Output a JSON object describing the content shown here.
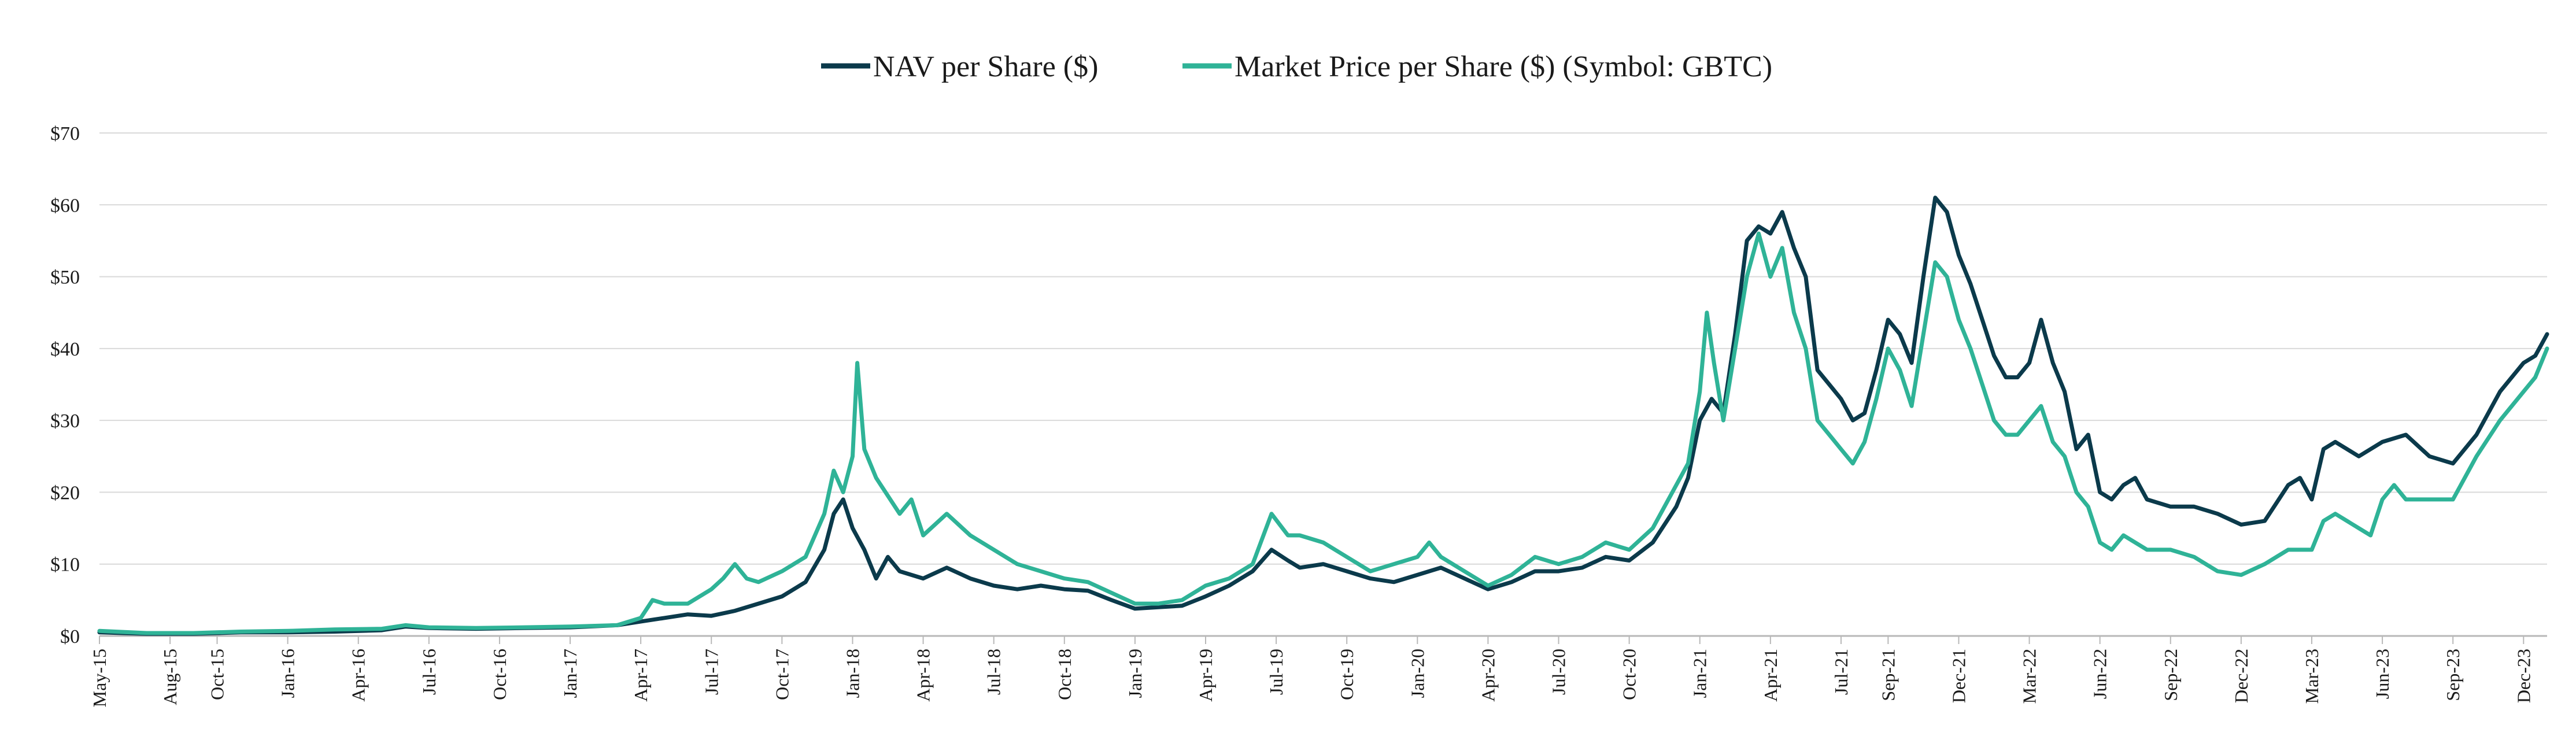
{
  "chart_data": {
    "type": "line",
    "title": "",
    "xlabel": "",
    "ylabel": "",
    "ylim": [
      0,
      70
    ],
    "y_ticks": [
      "$0",
      "$10",
      "$20",
      "$30",
      "$40",
      "$50",
      "$60",
      "$70"
    ],
    "y_tick_values": [
      0,
      10,
      20,
      30,
      40,
      50,
      60,
      70
    ],
    "x_tick_labels": [
      "May-15",
      "Aug-15",
      "Oct-15",
      "Jan-16",
      "Apr-16",
      "Jul-16",
      "Oct-16",
      "Jan-17",
      "Apr-17",
      "Jul-17",
      "Oct-17",
      "Jan-18",
      "Apr-18",
      "Jul-18",
      "Oct-18",
      "Jan-19",
      "Apr-19",
      "Jul-19",
      "Oct-19",
      "Jan-20",
      "Apr-20",
      "Jul-20",
      "Oct-20",
      "Jan-21",
      "Apr-21",
      "Jul-21",
      "Sep-21",
      "Dec-21",
      "Mar-22",
      "Jun-22",
      "Sep-22",
      "Dec-22",
      "Mar-23",
      "Jun-23",
      "Sep-23",
      "Dec-23"
    ],
    "x_tick_months": [
      0,
      3,
      5,
      8,
      11,
      14,
      17,
      20,
      23,
      26,
      29,
      32,
      35,
      38,
      41,
      44,
      47,
      50,
      53,
      56,
      59,
      62,
      65,
      68,
      71,
      74,
      76,
      79,
      82,
      85,
      88,
      91,
      94,
      97,
      100,
      103
    ],
    "x_range_months": [
      0,
      104
    ],
    "grid": "horizontal",
    "legend_position": "top-center",
    "series": [
      {
        "name": "NAV per Share ($)",
        "color": "#0b3a4b",
        "points": [
          [
            0,
            0.5
          ],
          [
            2,
            0.3
          ],
          [
            4,
            0.3
          ],
          [
            6,
            0.5
          ],
          [
            8,
            0.5
          ],
          [
            10,
            0.6
          ],
          [
            12,
            0.8
          ],
          [
            13,
            1.3
          ],
          [
            14,
            1.1
          ],
          [
            16,
            1.0
          ],
          [
            18,
            1.1
          ],
          [
            20,
            1.2
          ],
          [
            22,
            1.5
          ],
          [
            23,
            2.0
          ],
          [
            24,
            2.5
          ],
          [
            25,
            3.0
          ],
          [
            26,
            2.8
          ],
          [
            27,
            3.5
          ],
          [
            28,
            4.5
          ],
          [
            29,
            5.5
          ],
          [
            30,
            7.5
          ],
          [
            30.8,
            12
          ],
          [
            31.2,
            17
          ],
          [
            31.6,
            19
          ],
          [
            32,
            15
          ],
          [
            32.5,
            12
          ],
          [
            33,
            8
          ],
          [
            33.5,
            11
          ],
          [
            34,
            9
          ],
          [
            35,
            8
          ],
          [
            36,
            9.5
          ],
          [
            37,
            8
          ],
          [
            38,
            7
          ],
          [
            39,
            6.5
          ],
          [
            40,
            7
          ],
          [
            41,
            6.5
          ],
          [
            42,
            6.3
          ],
          [
            43,
            5
          ],
          [
            44,
            3.8
          ],
          [
            45,
            4
          ],
          [
            46,
            4.2
          ],
          [
            47,
            5.5
          ],
          [
            48,
            7
          ],
          [
            49,
            9
          ],
          [
            49.8,
            12
          ],
          [
            50.5,
            10.5
          ],
          [
            51,
            9.5
          ],
          [
            52,
            10
          ],
          [
            53,
            9
          ],
          [
            54,
            8
          ],
          [
            55,
            7.5
          ],
          [
            56,
            8.5
          ],
          [
            57,
            9.5
          ],
          [
            58,
            8
          ],
          [
            59,
            6.5
          ],
          [
            60,
            7.5
          ],
          [
            61,
            9
          ],
          [
            62,
            9
          ],
          [
            63,
            9.5
          ],
          [
            64,
            11
          ],
          [
            65,
            10.5
          ],
          [
            66,
            13
          ],
          [
            67,
            18
          ],
          [
            67.5,
            22
          ],
          [
            68,
            30
          ],
          [
            68.5,
            33
          ],
          [
            69,
            31
          ],
          [
            69.5,
            42
          ],
          [
            70,
            55
          ],
          [
            70.5,
            57
          ],
          [
            71,
            56
          ],
          [
            71.5,
            59
          ],
          [
            72,
            54
          ],
          [
            72.5,
            50
          ],
          [
            73,
            37
          ],
          [
            73.5,
            35
          ],
          [
            74,
            33
          ],
          [
            74.5,
            30
          ],
          [
            75,
            31
          ],
          [
            75.5,
            37
          ],
          [
            76,
            44
          ],
          [
            76.5,
            42
          ],
          [
            77,
            38
          ],
          [
            77.5,
            50
          ],
          [
            78,
            61
          ],
          [
            78.5,
            59
          ],
          [
            79,
            53
          ],
          [
            79.5,
            49
          ],
          [
            80,
            44
          ],
          [
            80.5,
            39
          ],
          [
            81,
            36
          ],
          [
            81.5,
            36
          ],
          [
            82,
            38
          ],
          [
            82.5,
            44
          ],
          [
            83,
            38
          ],
          [
            83.5,
            34
          ],
          [
            84,
            26
          ],
          [
            84.5,
            28
          ],
          [
            85,
            20
          ],
          [
            85.5,
            19
          ],
          [
            86,
            21
          ],
          [
            86.5,
            22
          ],
          [
            87,
            19
          ],
          [
            88,
            18
          ],
          [
            89,
            18
          ],
          [
            90,
            17
          ],
          [
            91,
            15.5
          ],
          [
            92,
            16
          ],
          [
            93,
            21
          ],
          [
            93.5,
            22
          ],
          [
            94,
            19
          ],
          [
            94.5,
            26
          ],
          [
            95,
            27
          ],
          [
            96,
            25
          ],
          [
            97,
            27
          ],
          [
            98,
            28
          ],
          [
            99,
            25
          ],
          [
            100,
            24
          ],
          [
            101,
            28
          ],
          [
            102,
            34
          ],
          [
            103,
            38
          ],
          [
            103.5,
            39
          ],
          [
            104,
            42
          ]
        ]
      },
      {
        "name": "Market Price per Share ($) (Symbol: GBTC)",
        "color": "#2fb397",
        "points": [
          [
            0,
            0.7
          ],
          [
            2,
            0.4
          ],
          [
            4,
            0.4
          ],
          [
            6,
            0.6
          ],
          [
            8,
            0.7
          ],
          [
            10,
            0.9
          ],
          [
            12,
            1.0
          ],
          [
            13,
            1.5
          ],
          [
            14,
            1.2
          ],
          [
            16,
            1.1
          ],
          [
            18,
            1.2
          ],
          [
            20,
            1.3
          ],
          [
            22,
            1.5
          ],
          [
            23,
            2.5
          ],
          [
            23.5,
            5
          ],
          [
            24,
            4.5
          ],
          [
            25,
            4.5
          ],
          [
            26,
            6.5
          ],
          [
            26.5,
            8
          ],
          [
            27,
            10
          ],
          [
            27.5,
            8
          ],
          [
            28,
            7.5
          ],
          [
            29,
            9
          ],
          [
            30,
            11
          ],
          [
            30.8,
            17
          ],
          [
            31.2,
            23
          ],
          [
            31.6,
            20
          ],
          [
            32,
            25
          ],
          [
            32.2,
            38
          ],
          [
            32.5,
            26
          ],
          [
            33,
            22
          ],
          [
            34,
            17
          ],
          [
            34.5,
            19
          ],
          [
            35,
            14
          ],
          [
            36,
            17
          ],
          [
            37,
            14
          ],
          [
            38,
            12
          ],
          [
            39,
            10
          ],
          [
            40,
            9
          ],
          [
            41,
            8
          ],
          [
            42,
            7.5
          ],
          [
            43,
            6
          ],
          [
            44,
            4.5
          ],
          [
            45,
            4.5
          ],
          [
            46,
            5
          ],
          [
            47,
            7
          ],
          [
            48,
            8
          ],
          [
            49,
            10
          ],
          [
            49.8,
            17
          ],
          [
            50.5,
            14
          ],
          [
            51,
            14
          ],
          [
            52,
            13
          ],
          [
            53,
            11
          ],
          [
            54,
            9
          ],
          [
            55,
            10
          ],
          [
            56,
            11
          ],
          [
            56.5,
            13
          ],
          [
            57,
            11
          ],
          [
            58,
            9
          ],
          [
            59,
            7
          ],
          [
            60,
            8.5
          ],
          [
            61,
            11
          ],
          [
            62,
            10
          ],
          [
            63,
            11
          ],
          [
            64,
            13
          ],
          [
            65,
            12
          ],
          [
            66,
            15
          ],
          [
            67,
            21
          ],
          [
            67.5,
            24
          ],
          [
            68,
            34
          ],
          [
            68.3,
            45
          ],
          [
            68.6,
            38
          ],
          [
            69,
            30
          ],
          [
            69.5,
            40
          ],
          [
            70,
            50
          ],
          [
            70.5,
            56
          ],
          [
            71,
            50
          ],
          [
            71.5,
            54
          ],
          [
            72,
            45
          ],
          [
            72.5,
            40
          ],
          [
            73,
            30
          ],
          [
            73.5,
            28
          ],
          [
            74,
            26
          ],
          [
            74.5,
            24
          ],
          [
            75,
            27
          ],
          [
            75.5,
            33
          ],
          [
            76,
            40
          ],
          [
            76.5,
            37
          ],
          [
            77,
            32
          ],
          [
            77.5,
            42
          ],
          [
            78,
            52
          ],
          [
            78.5,
            50
          ],
          [
            79,
            44
          ],
          [
            79.5,
            40
          ],
          [
            80,
            35
          ],
          [
            80.5,
            30
          ],
          [
            81,
            28
          ],
          [
            81.5,
            28
          ],
          [
            82,
            30
          ],
          [
            82.5,
            32
          ],
          [
            83,
            27
          ],
          [
            83.5,
            25
          ],
          [
            84,
            20
          ],
          [
            84.5,
            18
          ],
          [
            85,
            13
          ],
          [
            85.5,
            12
          ],
          [
            86,
            14
          ],
          [
            86.5,
            13
          ],
          [
            87,
            12
          ],
          [
            88,
            12
          ],
          [
            89,
            11
          ],
          [
            90,
            9
          ],
          [
            91,
            8.5
          ],
          [
            92,
            10
          ],
          [
            93,
            12
          ],
          [
            94,
            12
          ],
          [
            94.5,
            16
          ],
          [
            95,
            17
          ],
          [
            96,
            15
          ],
          [
            96.5,
            14
          ],
          [
            97,
            19
          ],
          [
            97.5,
            21
          ],
          [
            98,
            19
          ],
          [
            99,
            19
          ],
          [
            100,
            19
          ],
          [
            101,
            25
          ],
          [
            102,
            30
          ],
          [
            103,
            34
          ],
          [
            103.5,
            36
          ],
          [
            104,
            40
          ]
        ]
      }
    ]
  }
}
